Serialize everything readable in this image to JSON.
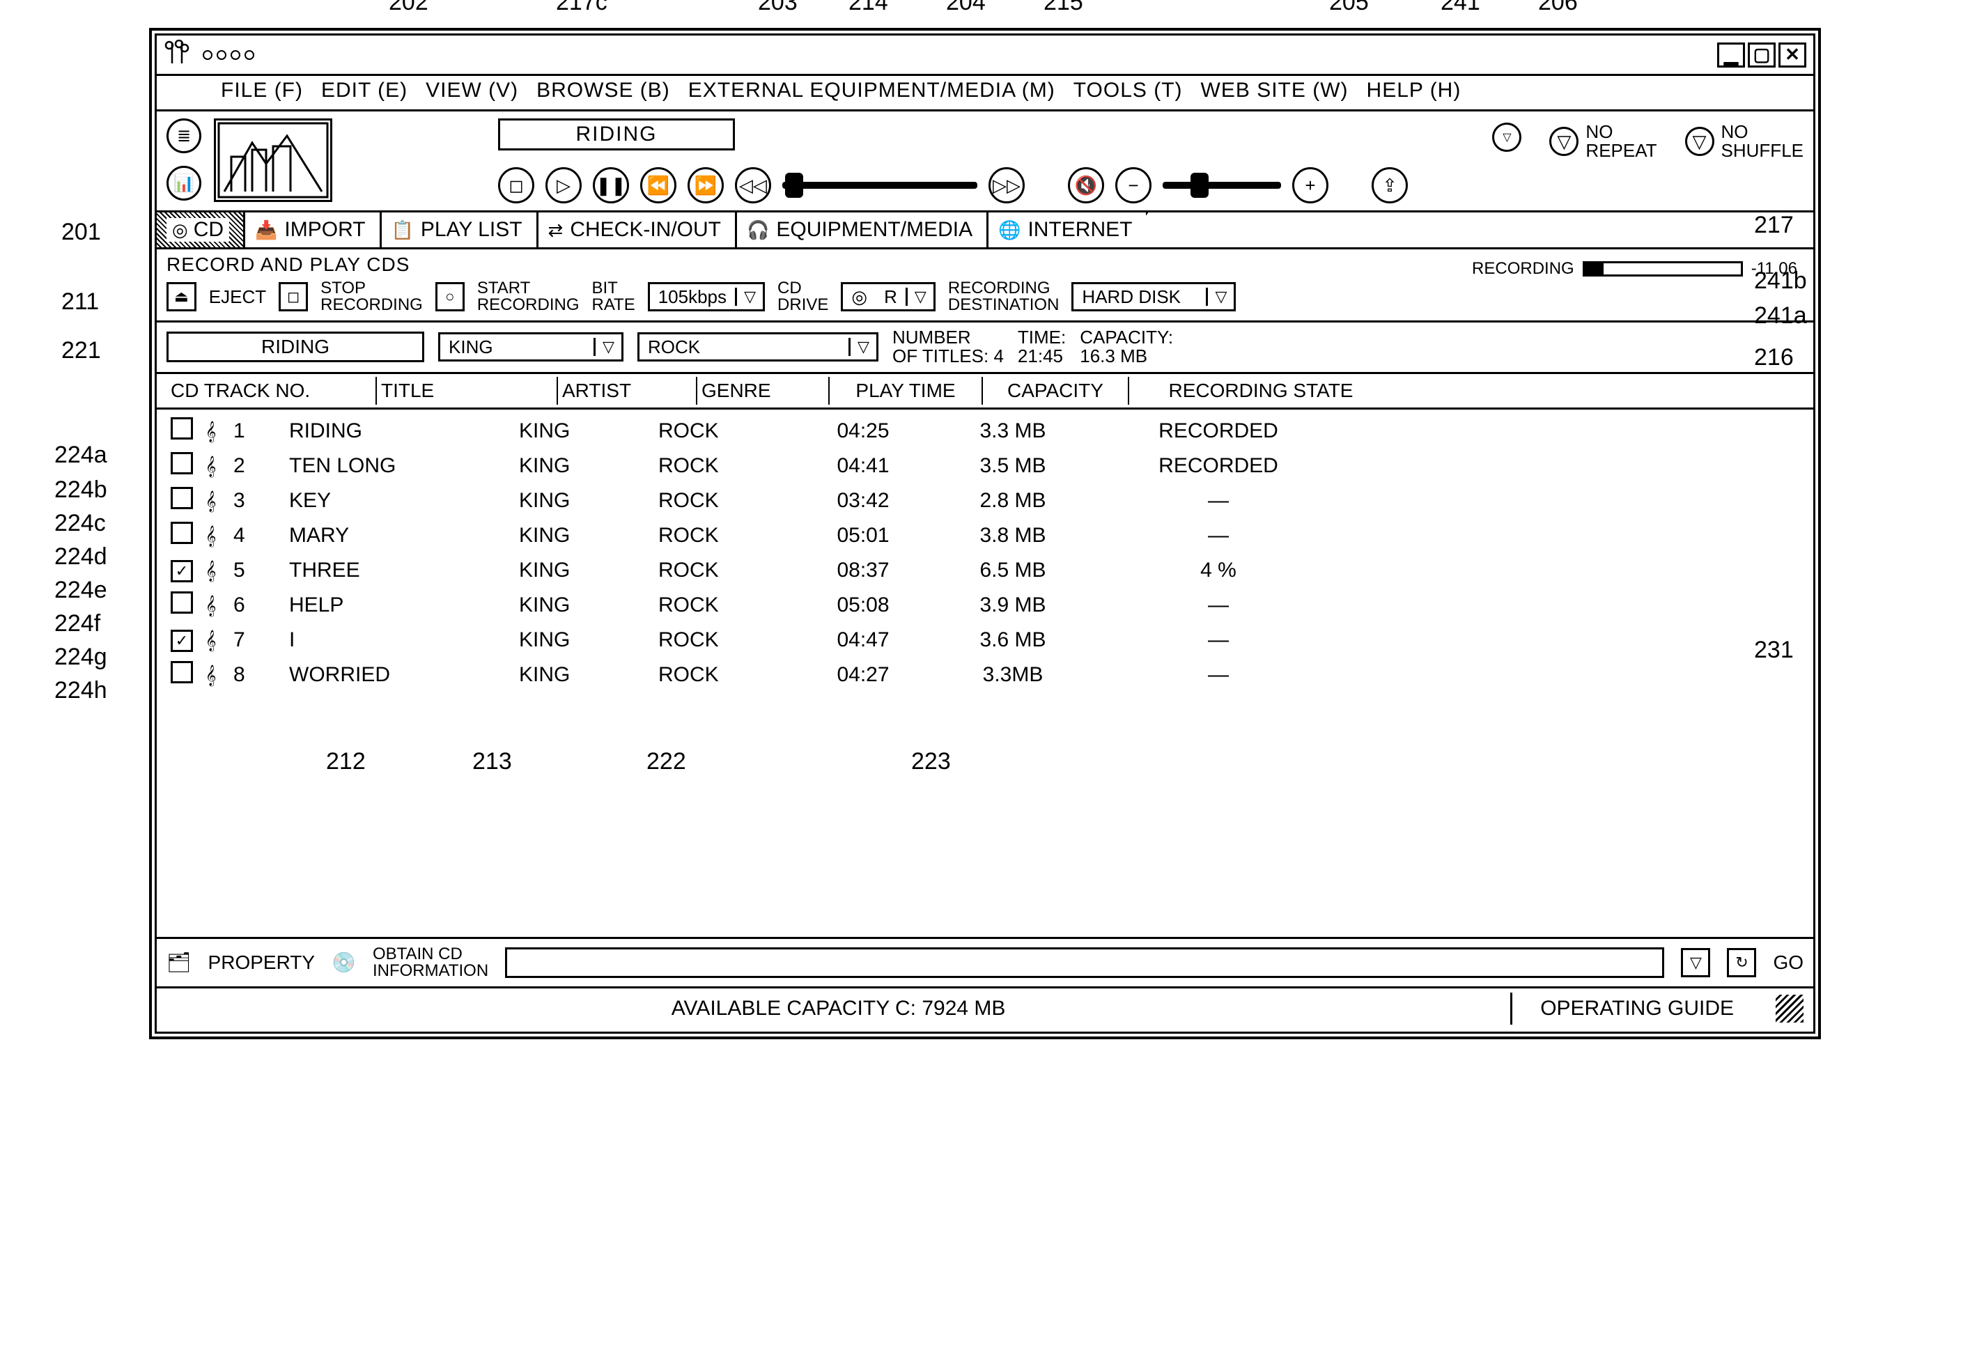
{
  "menu": {
    "file": "FILE (F)",
    "edit": "EDIT (E)",
    "view": "VIEW (V)",
    "browse": "BROWSE (B)",
    "external": "EXTERNAL EQUIPMENT/MEDIA (M)",
    "tools": "TOOLS (T)",
    "web": "WEB SITE (W)",
    "help": "HELP (H)"
  },
  "player": {
    "now_playing": "RIDING",
    "repeat_label": "NO\nREPEAT",
    "shuffle_label": "NO\nSHUFFLE"
  },
  "tabs": {
    "cd": "CD",
    "import": "IMPORT",
    "playlist": "PLAY LIST",
    "checkinout": "CHECK-IN/OUT",
    "equipment": "EQUIPMENT/MEDIA",
    "internet": "INTERNET"
  },
  "section": {
    "title": "RECORD AND PLAY CDS"
  },
  "controls": {
    "eject": "EJECT",
    "stop_rec": "STOP\nRECORDING",
    "start_rec": "START\nRECORDING",
    "bitrate_label": "BIT\nRATE",
    "bitrate_value": "105kbps",
    "cddrive_label": "CD\nDRIVE",
    "cddrive_value": "R",
    "dest_label": "RECORDING\nDESTINATION",
    "dest_value": "HARD DISK",
    "rec_label": "RECORDING",
    "rec_pct_width": "12%",
    "rec_timer": "-11.06"
  },
  "album": {
    "title": "RIDING",
    "artist": "KING",
    "genre": "ROCK",
    "num_titles_label": "NUMBER\nOF TITLES:",
    "num_titles_value": "4",
    "time_label": "TIME:",
    "time_value": "21:45",
    "capacity_label": "CAPACITY:",
    "capacity_value": "16.3 MB"
  },
  "columns": {
    "trackno": "CD TRACK NO.",
    "title": "TITLE",
    "artist": "ARTIST",
    "genre": "GENRE",
    "playtime": "PLAY TIME",
    "capacity": "CAPACITY",
    "state": "RECORDING STATE"
  },
  "tracks": [
    {
      "checked": false,
      "no": "1",
      "title": "RIDING",
      "artist": "KING",
      "genre": "ROCK",
      "play": "04:25",
      "cap": "3.3 MB",
      "state": "RECORDED"
    },
    {
      "checked": false,
      "no": "2",
      "title": "TEN LONG",
      "artist": "KING",
      "genre": "ROCK",
      "play": "04:41",
      "cap": "3.5 MB",
      "state": "RECORDED"
    },
    {
      "checked": false,
      "no": "3",
      "title": "KEY",
      "artist": "KING",
      "genre": "ROCK",
      "play": "03:42",
      "cap": "2.8 MB",
      "state": "—"
    },
    {
      "checked": false,
      "no": "4",
      "title": "MARY",
      "artist": "KING",
      "genre": "ROCK",
      "play": "05:01",
      "cap": "3.8 MB",
      "state": "—"
    },
    {
      "checked": true,
      "no": "5",
      "title": "THREE",
      "artist": "KING",
      "genre": "ROCK",
      "play": "08:37",
      "cap": "6.5 MB",
      "state": "4 %"
    },
    {
      "checked": false,
      "no": "6",
      "title": "HELP",
      "artist": "KING",
      "genre": "ROCK",
      "play": "05:08",
      "cap": "3.9 MB",
      "state": "—"
    },
    {
      "checked": true,
      "no": "7",
      "title": "I",
      "artist": "KING",
      "genre": "ROCK",
      "play": "04:47",
      "cap": "3.6 MB",
      "state": "—"
    },
    {
      "checked": false,
      "no": "8",
      "title": "WORRIED",
      "artist": "KING",
      "genre": "ROCK",
      "play": "04:27",
      "cap": "3.3MB",
      "state": "—"
    }
  ],
  "footer": {
    "property": "PROPERTY",
    "obtain": "OBTAIN CD\nINFORMATION",
    "go": "GO",
    "available": "AVAILABLE CAPACITY C: 7924 MB",
    "guide": "OPERATING GUIDE"
  },
  "callouts": {
    "c201": "201",
    "c202": "202",
    "c203": "203",
    "c204": "204",
    "c205": "205",
    "c206": "206",
    "c211": "211",
    "c212": "212",
    "c213": "213",
    "c214": "214",
    "c215": "215",
    "c216": "216",
    "c217": "217",
    "c217c": "217c",
    "c221": "221",
    "c222": "222",
    "c223": "223",
    "c224a": "224a",
    "c224b": "224b",
    "c224c": "224c",
    "c224d": "224d",
    "c224e": "224e",
    "c224f": "224f",
    "c224g": "224g",
    "c224h": "224h",
    "c231": "231",
    "c241": "241",
    "c241a": "241a",
    "c241b": "241b"
  }
}
